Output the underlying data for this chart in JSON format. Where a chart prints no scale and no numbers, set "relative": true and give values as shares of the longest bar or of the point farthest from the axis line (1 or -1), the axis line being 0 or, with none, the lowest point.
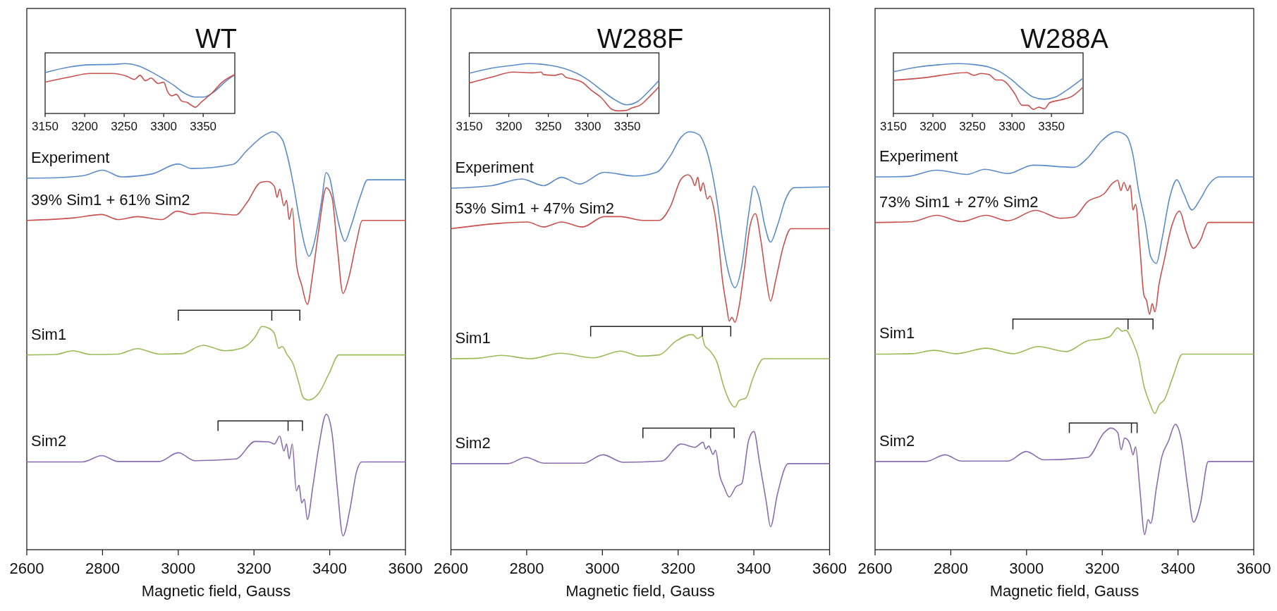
{
  "chart_data": [
    {
      "type": "line",
      "xlabel": "Magnetic field, Gauss",
      "xlim": [
        2600,
        3600
      ],
      "xticks": [
        2600,
        2800,
        3000,
        3200,
        3400,
        3600
      ],
      "relative": true,
      "series": [
        {
          "name": "Experiment",
          "color": "#5b8cc8",
          "x": [
            2600,
            2675,
            2750,
            2800,
            2850,
            2930,
            3000,
            3035,
            3145,
            3180,
            3225,
            3250,
            3275,
            3290,
            3305,
            3320,
            3335,
            3345,
            3360,
            3380,
            3390,
            3400,
            3415,
            3430,
            3440,
            3455,
            3480,
            3500,
            3600
          ],
          "values": [
            0.889,
            0.89,
            0.895,
            0.908,
            0.892,
            0.899,
            0.923,
            0.912,
            0.922,
            0.954,
            0.99,
            1.0,
            0.981,
            0.935,
            0.869,
            0.79,
            0.725,
            0.702,
            0.738,
            0.843,
            0.902,
            0.889,
            0.817,
            0.758,
            0.738,
            0.771,
            0.843,
            0.885,
            0.885
          ]
        },
        {
          "name": "39% Sim1 + 61% Sim2",
          "color": "#c8504d",
          "x": [
            2600,
            2725,
            2798,
            2841,
            2892,
            2957,
            2997,
            3037,
            3065,
            3152,
            3181,
            3218,
            3236,
            3254,
            3261,
            3268,
            3279,
            3286,
            3293,
            3301,
            3312,
            3326,
            3341,
            3355,
            3370,
            3391,
            3406,
            3420,
            3435,
            3449,
            3471,
            3486,
            3600
          ],
          "values": [
            0.788,
            0.794,
            0.802,
            0.79,
            0.797,
            0.79,
            0.81,
            0.802,
            0.806,
            0.801,
            0.83,
            0.879,
            0.881,
            0.869,
            0.843,
            0.863,
            0.823,
            0.836,
            0.79,
            0.817,
            0.685,
            0.633,
            0.587,
            0.659,
            0.758,
            0.866,
            0.843,
            0.725,
            0.613,
            0.646,
            0.738,
            0.788,
            0.788
          ]
        },
        {
          "name": "Sim1",
          "color": "#9bbb59",
          "x": [
            2600,
            2675,
            2722,
            2769,
            2841,
            2892,
            2950,
            3008,
            3066,
            3123,
            3167,
            3203,
            3221,
            3239,
            3254,
            3265,
            3275,
            3286,
            3304,
            3319,
            3330,
            3344,
            3373,
            3399,
            3424,
            3600
          ],
          "values": [
            0.466,
            0.467,
            0.476,
            0.467,
            0.468,
            0.481,
            0.468,
            0.469,
            0.489,
            0.476,
            0.482,
            0.509,
            0.534,
            0.53,
            0.517,
            0.482,
            0.486,
            0.469,
            0.443,
            0.397,
            0.364,
            0.358,
            0.377,
            0.423,
            0.466,
            0.466
          ]
        },
        {
          "name": "Sim2",
          "color": "#8a6cb0",
          "x": [
            2600,
            2747,
            2798,
            2841,
            2950,
            3000,
            3044,
            3152,
            3203,
            3239,
            3254,
            3268,
            3279,
            3286,
            3293,
            3301,
            3312,
            3319,
            3326,
            3333,
            3341,
            3355,
            3370,
            3391,
            3406,
            3420,
            3435,
            3453,
            3471,
            3485,
            3600
          ],
          "values": [
            0.21,
            0.21,
            0.225,
            0.211,
            0.211,
            0.232,
            0.213,
            0.217,
            0.259,
            0.258,
            0.253,
            0.272,
            0.236,
            0.253,
            0.217,
            0.253,
            0.141,
            0.154,
            0.112,
            0.121,
            0.072,
            0.148,
            0.24,
            0.324,
            0.279,
            0.148,
            0.033,
            0.095,
            0.187,
            0.21,
            0.21
          ]
        }
      ]
    },
    {
      "type": "line",
      "title": "WT",
      "xlim": [
        3150,
        3390
      ],
      "xticks": [
        3150,
        3200,
        3250,
        3300,
        3350
      ],
      "relative": true,
      "series": [
        {
          "color": "#5b8cc8",
          "x": [
            3150,
            3180,
            3207,
            3235,
            3251,
            3268,
            3284,
            3298,
            3312,
            3326,
            3340,
            3350,
            3364,
            3378,
            3390
          ],
          "values": [
            0.82,
            0.929,
            0.978,
            0.984,
            1.0,
            0.956,
            0.836,
            0.71,
            0.574,
            0.41,
            0.328,
            0.328,
            0.437,
            0.639,
            0.781
          ]
        },
        {
          "color": "#c8504d",
          "x": [
            3150,
            3180,
            3207,
            3235,
            3253,
            3263,
            3270,
            3277,
            3284,
            3293,
            3300,
            3305,
            3310,
            3316,
            3323,
            3330,
            3335,
            3340,
            3347,
            3361,
            3374,
            3390
          ],
          "values": [
            0.628,
            0.727,
            0.803,
            0.803,
            0.749,
            0.683,
            0.765,
            0.656,
            0.71,
            0.601,
            0.628,
            0.437,
            0.355,
            0.383,
            0.246,
            0.219,
            0.164,
            0.126,
            0.219,
            0.41,
            0.628,
            0.781
          ]
        }
      ]
    },
    {
      "type": "line",
      "xlabel": "Magnetic field, Gauss",
      "xlim": [
        2600,
        3600
      ],
      "xticks": [
        2600,
        2800,
        3000,
        3200,
        3400,
        3600
      ],
      "relative": true,
      "series": [
        {
          "name": "Experiment",
          "color": "#5b8cc8",
          "x": [
            2600,
            2707,
            2787,
            2845,
            2892,
            2940,
            3005,
            3085,
            3143,
            3179,
            3208,
            3230,
            3255,
            3273,
            3288,
            3302,
            3317,
            3331,
            3350,
            3368,
            3386,
            3400,
            3415,
            3429,
            3444,
            3462,
            3484,
            3506,
            3600
          ],
          "values": [
            0.865,
            0.871,
            0.887,
            0.871,
            0.891,
            0.875,
            0.903,
            0.894,
            0.903,
            0.942,
            0.987,
            1.0,
            0.993,
            0.961,
            0.91,
            0.839,
            0.743,
            0.672,
            0.627,
            0.678,
            0.801,
            0.87,
            0.839,
            0.775,
            0.736,
            0.775,
            0.839,
            0.866,
            0.868
          ]
        },
        {
          "name": "53% Sim1 + 47% Sim2",
          "color": "#c8504d",
          "x": [
            2600,
            2729,
            2802,
            2845,
            2892,
            2947,
            3005,
            3048,
            3107,
            3150,
            3179,
            3208,
            3226,
            3237,
            3244,
            3252,
            3259,
            3266,
            3277,
            3284,
            3295,
            3306,
            3317,
            3328,
            3335,
            3342,
            3350,
            3361,
            3375,
            3390,
            3404,
            3418,
            3433,
            3444,
            3458,
            3477,
            3498,
            3600
          ],
          "values": [
            0.768,
            0.781,
            0.784,
            0.772,
            0.784,
            0.772,
            0.797,
            0.797,
            0.788,
            0.788,
            0.82,
            0.887,
            0.897,
            0.887,
            0.871,
            0.891,
            0.858,
            0.878,
            0.839,
            0.846,
            0.813,
            0.743,
            0.646,
            0.582,
            0.547,
            0.556,
            0.544,
            0.582,
            0.672,
            0.775,
            0.804,
            0.743,
            0.646,
            0.595,
            0.646,
            0.723,
            0.768,
            0.768
          ]
        },
        {
          "name": "Sim1",
          "color": "#9bbb59",
          "x": [
            2600,
            2671,
            2733,
            2809,
            2889,
            2976,
            3048,
            3099,
            3150,
            3194,
            3237,
            3252,
            3263,
            3270,
            3284,
            3302,
            3321,
            3335,
            3350,
            3361,
            3379,
            3397,
            3426,
            3600
          ],
          "values": [
            0.457,
            0.458,
            0.465,
            0.457,
            0.47,
            0.459,
            0.475,
            0.463,
            0.466,
            0.499,
            0.515,
            0.505,
            0.511,
            0.489,
            0.476,
            0.45,
            0.389,
            0.357,
            0.341,
            0.357,
            0.363,
            0.409,
            0.457,
            0.457
          ]
        },
        {
          "name": "Sim2",
          "color": "#8a6cb0",
          "x": [
            2600,
            2751,
            2798,
            2845,
            2950,
            3001,
            3056,
            3157,
            3208,
            3244,
            3266,
            3273,
            3281,
            3292,
            3299,
            3310,
            3321,
            3335,
            3353,
            3368,
            3386,
            3400,
            3415,
            3433,
            3444,
            3462,
            3491,
            3600
          ],
          "values": [
            0.206,
            0.206,
            0.221,
            0.207,
            0.207,
            0.227,
            0.209,
            0.212,
            0.253,
            0.245,
            0.257,
            0.241,
            0.248,
            0.228,
            0.238,
            0.177,
            0.151,
            0.126,
            0.151,
            0.158,
            0.261,
            0.283,
            0.209,
            0.113,
            0.055,
            0.132,
            0.206,
            0.206
          ]
        }
      ]
    },
    {
      "type": "line",
      "title": "W288F",
      "xlim": [
        3150,
        3390
      ],
      "xticks": [
        3150,
        3200,
        3250,
        3300,
        3350
      ],
      "relative": true,
      "series": [
        {
          "color": "#5b8cc8",
          "x": [
            3150,
            3178,
            3206,
            3227,
            3251,
            3269,
            3286,
            3300,
            3317,
            3335,
            3349,
            3363,
            3377,
            3390
          ],
          "values": [
            0.805,
            0.908,
            0.969,
            1.0,
            0.969,
            0.908,
            0.805,
            0.677,
            0.472,
            0.267,
            0.174,
            0.241,
            0.446,
            0.662
          ]
        },
        {
          "color": "#c8504d",
          "x": [
            3150,
            3178,
            3206,
            3230,
            3241,
            3244,
            3258,
            3267,
            3272,
            3281,
            3293,
            3304,
            3317,
            3331,
            3338,
            3349,
            3356,
            3366,
            3380,
            3390
          ],
          "values": [
            0.61,
            0.728,
            0.831,
            0.815,
            0.831,
            0.779,
            0.764,
            0.795,
            0.728,
            0.692,
            0.626,
            0.472,
            0.318,
            0.077,
            0.051,
            0.062,
            0.113,
            0.164,
            0.369,
            0.533
          ]
        }
      ]
    },
    {
      "type": "line",
      "xlabel": "Magnetic field, Gauss",
      "xlim": [
        2600,
        3600
      ],
      "xticks": [
        2600,
        2800,
        3000,
        3200,
        3400,
        3600
      ],
      "relative": true,
      "series": [
        {
          "name": "Experiment",
          "color": "#5b8cc8",
          "x": [
            2600,
            2683,
            2763,
            2843,
            2890,
            2951,
            3017,
            3125,
            3162,
            3198,
            3238,
            3263,
            3281,
            3296,
            3314,
            3328,
            3343,
            3357,
            3379,
            3397,
            3415,
            3437,
            3459,
            3480,
            3509,
            3600
          ],
          "values": [
            0.892,
            0.893,
            0.908,
            0.898,
            0.91,
            0.9,
            0.92,
            0.915,
            0.938,
            0.978,
            1.0,
            0.991,
            0.945,
            0.859,
            0.78,
            0.701,
            0.685,
            0.74,
            0.846,
            0.885,
            0.852,
            0.813,
            0.839,
            0.872,
            0.892,
            0.892
          ]
        },
        {
          "name": "73% Sim1 + 27% Sim2",
          "color": "#c8504d",
          "x": [
            2600,
            2698,
            2763,
            2828,
            2893,
            2951,
            3024,
            3089,
            3125,
            3162,
            3205,
            3230,
            3241,
            3249,
            3257,
            3267,
            3274,
            3281,
            3288,
            3299,
            3310,
            3317,
            3325,
            3332,
            3339,
            3350,
            3364,
            3383,
            3404,
            3422,
            3441,
            3459,
            3480,
            3600
          ],
          "values": [
            0.783,
            0.785,
            0.8,
            0.785,
            0.8,
            0.787,
            0.812,
            0.793,
            0.796,
            0.833,
            0.852,
            0.879,
            0.884,
            0.859,
            0.879,
            0.859,
            0.872,
            0.813,
            0.826,
            0.727,
            0.609,
            0.596,
            0.563,
            0.589,
            0.569,
            0.635,
            0.694,
            0.773,
            0.81,
            0.76,
            0.721,
            0.74,
            0.783,
            0.783
          ]
        },
        {
          "name": "Sim1",
          "color": "#9bbb59",
          "x": [
            2600,
            2698,
            2756,
            2814,
            2893,
            2966,
            3031,
            3104,
            3162,
            3194,
            3220,
            3241,
            3252,
            3263,
            3274,
            3285,
            3296,
            3310,
            3325,
            3339,
            3350,
            3364,
            3386,
            3412,
            3600
          ],
          "values": [
            0.468,
            0.469,
            0.477,
            0.469,
            0.482,
            0.469,
            0.486,
            0.474,
            0.5,
            0.504,
            0.51,
            0.531,
            0.523,
            0.525,
            0.51,
            0.487,
            0.458,
            0.392,
            0.352,
            0.326,
            0.346,
            0.359,
            0.412,
            0.468,
            0.468
          ]
        },
        {
          "name": "Sim2",
          "color": "#8a6cb0",
          "x": [
            2600,
            2734,
            2785,
            2828,
            2951,
            2999,
            3046,
            3162,
            3205,
            3223,
            3241,
            3250,
            3259,
            3267,
            3274,
            3281,
            3288,
            3299,
            3312,
            3321,
            3328,
            3343,
            3357,
            3375,
            3393,
            3408,
            3426,
            3441,
            3459,
            3480,
            3600
          ],
          "values": [
            0.211,
            0.211,
            0.227,
            0.212,
            0.212,
            0.235,
            0.215,
            0.221,
            0.28,
            0.291,
            0.28,
            0.239,
            0.267,
            0.263,
            0.25,
            0.227,
            0.246,
            0.148,
            0.036,
            0.072,
            0.063,
            0.148,
            0.221,
            0.26,
            0.3,
            0.267,
            0.148,
            0.066,
            0.109,
            0.211,
            0.211
          ]
        }
      ]
    },
    {
      "type": "line",
      "title": "W288A",
      "xlim": [
        3150,
        3390
      ],
      "xticks": [
        3150,
        3200,
        3250,
        3300,
        3350
      ],
      "relative": true,
      "series": [
        {
          "color": "#5b8cc8",
          "x": [
            3150,
            3180,
            3208,
            3233,
            3254,
            3271,
            3285,
            3299,
            3313,
            3327,
            3341,
            3355,
            3369,
            3390
          ],
          "values": [
            0.836,
            0.929,
            0.978,
            1.0,
            0.978,
            0.929,
            0.836,
            0.683,
            0.492,
            0.328,
            0.284,
            0.328,
            0.464,
            0.71
          ]
        },
        {
          "color": "#c8504d",
          "x": [
            3150,
            3194,
            3222,
            3243,
            3252,
            3261,
            3271,
            3280,
            3287,
            3292,
            3303,
            3313,
            3320,
            3327,
            3334,
            3341,
            3348,
            3362,
            3376,
            3390
          ],
          "values": [
            0.667,
            0.727,
            0.792,
            0.82,
            0.765,
            0.803,
            0.781,
            0.672,
            0.672,
            0.628,
            0.41,
            0.164,
            0.164,
            0.082,
            0.126,
            0.093,
            0.219,
            0.273,
            0.344,
            0.53
          ]
        }
      ]
    }
  ]
}
